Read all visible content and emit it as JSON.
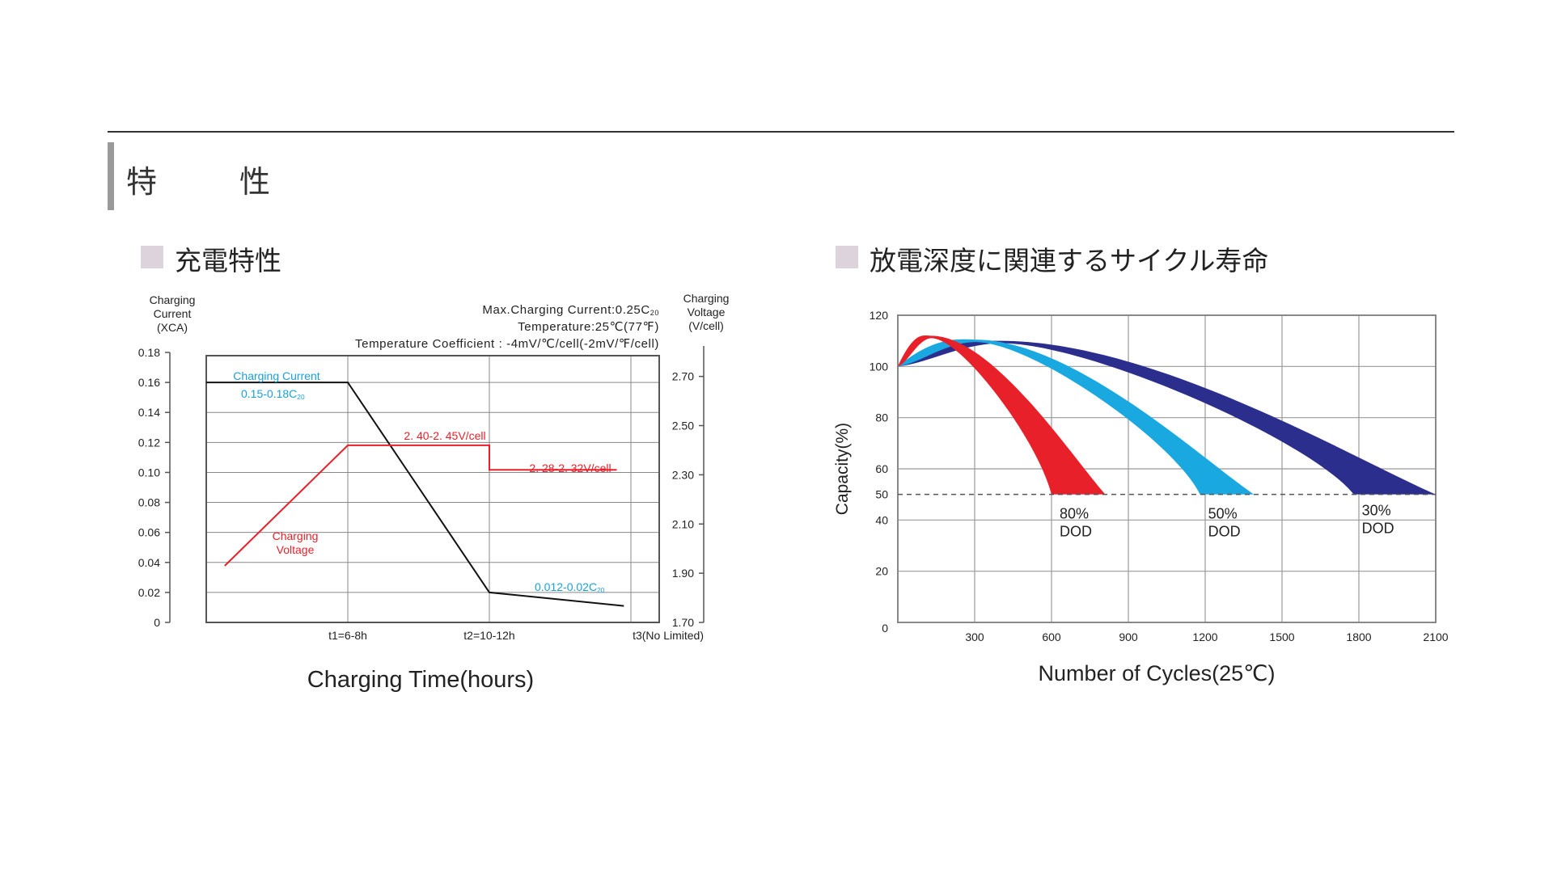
{
  "page": {
    "section_title": "特　性",
    "charge_title": "充電特性",
    "cycle_title": "放電深度に関連するサイクル寿命"
  },
  "chart_data": [
    {
      "type": "line",
      "title": "充電特性",
      "xlabel": "Charging Time(hours)",
      "left_axis": {
        "label": [
          "Charging",
          "Current",
          "(XCA)"
        ],
        "ticks": [
          0,
          0.02,
          0.04,
          0.06,
          0.08,
          0.1,
          0.12,
          0.14,
          0.16,
          0.18
        ],
        "tick_labels": [
          "0",
          "0.02",
          "0.04",
          "0.06",
          "0.08",
          "0.10",
          "0.12",
          "0.14",
          "0.16",
          "0.18"
        ],
        "ylim": [
          0,
          0.18
        ]
      },
      "right_axis": {
        "label": [
          "Charging",
          "Voltage",
          "(V/cell)"
        ],
        "ticks": [
          1.7,
          1.9,
          2.1,
          2.3,
          2.5,
          2.7
        ],
        "tick_labels": [
          "1.70",
          "1.90",
          "2.10",
          "2.30",
          "2.50",
          "2.70"
        ],
        "ylim": [
          1.7,
          2.85
        ]
      },
      "x_ticks": [
        {
          "x": 1,
          "label": "t1=6-8h"
        },
        {
          "x": 2,
          "label": "t2=10-12h"
        },
        {
          "x": 3,
          "label": "t3(No Limited)"
        }
      ],
      "xlim": [
        0,
        3.2
      ],
      "info_lines": [
        "Max.Charging Current:0.25C",
        "Temperature:25℃(77℉)",
        "Temperature Coefficient : -4mV/℃/cell(-2mV/℉/cell)"
      ],
      "info_sub": "20",
      "series": [
        {
          "name": "Charging Current",
          "axis": "left",
          "color": "#111111",
          "points": [
            [
              0,
              0.16
            ],
            [
              1,
              0.16
            ],
            [
              2,
              0.02
            ],
            [
              2.95,
              0.011
            ]
          ]
        },
        {
          "name": "Charging Voltage",
          "axis": "right",
          "color": "#e8202a",
          "points": [
            [
              0.13,
              1.93
            ],
            [
              1,
              2.42
            ],
            [
              2,
              2.42
            ],
            [
              2,
              2.32
            ],
            [
              2.9,
              2.32
            ]
          ]
        }
      ],
      "annotations": {
        "current_name": "Charging Current",
        "current_range": "0.15-0.18C",
        "current_range_sub": "20",
        "voltage_name": [
          "Charging",
          "Voltage"
        ],
        "voltage_high": "2. 40-2. 45V/cell",
        "voltage_float": "2. 28-2. 32V/cell",
        "current_end": "0.012-0.02C",
        "current_end_sub": "20"
      },
      "colors": {
        "current_text": "#1aa0dc",
        "voltage_text": "#e8202a",
        "grid": "#888888"
      }
    },
    {
      "type": "area",
      "title": "放電深度に関連するサイクル寿命",
      "xlabel": "Number of Cycles(25℃)",
      "ylabel": "Capacity(%)",
      "xlim": [
        0,
        2100
      ],
      "ylim": [
        0,
        120
      ],
      "x_ticks": [
        300,
        600,
        900,
        1200,
        1500,
        1800,
        2100
      ],
      "x_tick_labels": [
        "300",
        "600",
        "900",
        "1200",
        "1500",
        "1800",
        "2100"
      ],
      "y_ticks": [
        0,
        20,
        40,
        50,
        60,
        80,
        100,
        120
      ],
      "y_tick_labels": [
        "0",
        "20",
        "40",
        "50",
        "60",
        "80",
        "100",
        "120"
      ],
      "threshold": 50,
      "series": [
        {
          "name": "80% DOD",
          "label": [
            "80%",
            "DOD"
          ],
          "color": "#e8202a",
          "peak_x": 130,
          "peak_y": 112,
          "end_left": 600,
          "end_right": 810
        },
        {
          "name": "50% DOD",
          "label": [
            "50%",
            "DOD"
          ],
          "color": "#1aa8e0",
          "peak_x": 300,
          "peak_y": 110.5,
          "end_left": 1180,
          "end_right": 1390
        },
        {
          "name": "30% DOD",
          "label": [
            "30%",
            "DOD"
          ],
          "color": "#2b2e8c",
          "peak_x": 400,
          "peak_y": 110,
          "end_left": 1780,
          "end_right": 2100
        }
      ]
    }
  ]
}
